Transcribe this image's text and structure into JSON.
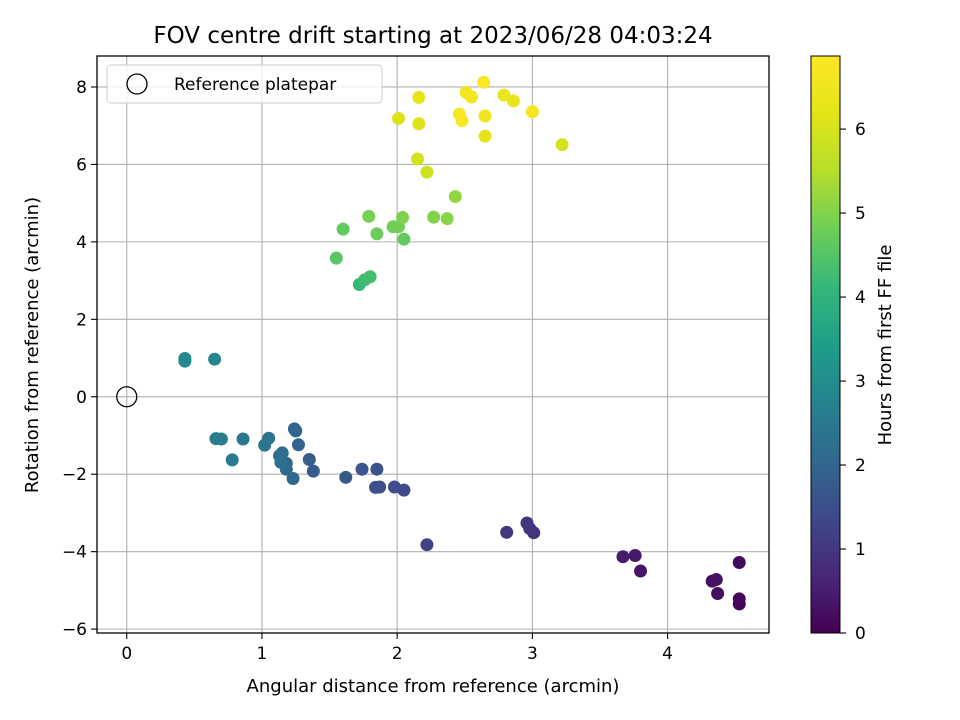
{
  "chart_data": {
    "type": "scatter",
    "title": "FOV centre drift starting at 2023/06/28 04:03:24",
    "xlabel": "Angular distance from reference (arcmin)",
    "ylabel": "Rotation from reference (arcmin)",
    "colorbar_label": "Hours from first FF file",
    "xlim": [
      -0.22,
      4.75
    ],
    "ylim": [
      -6.1,
      8.8
    ],
    "xticks": [
      0,
      1,
      2,
      3,
      4
    ],
    "yticks": [
      -6,
      -4,
      -2,
      0,
      2,
      4,
      6,
      8
    ],
    "xtick_labels": [
      "0",
      "1",
      "2",
      "3",
      "4"
    ],
    "ytick_labels": [
      "−6",
      "−4",
      "−2",
      "0",
      "2",
      "4",
      "6",
      "8"
    ],
    "colorbar_ticks": [
      0,
      1,
      2,
      3,
      4,
      5,
      6
    ],
    "colorbar_tick_labels": [
      "0",
      "1",
      "2",
      "3",
      "4",
      "5",
      "6"
    ],
    "colorbar_range": [
      0,
      6.87
    ],
    "colormap": "viridis",
    "grid": true,
    "legend": {
      "location": "top-left",
      "entries": [
        "Reference platepar"
      ]
    },
    "reference_point": {
      "x": 0,
      "y": 0
    },
    "points": [
      {
        "x": 4.53,
        "y": -5.35,
        "c": 0.05
      },
      {
        "x": 4.53,
        "y": -5.22,
        "c": 0.1
      },
      {
        "x": 4.53,
        "y": -4.28,
        "c": 0.15
      },
      {
        "x": 4.37,
        "y": -5.08,
        "c": 0.2
      },
      {
        "x": 4.33,
        "y": -4.76,
        "c": 0.25
      },
      {
        "x": 4.36,
        "y": -4.72,
        "c": 0.3
      },
      {
        "x": 3.8,
        "y": -4.5,
        "c": 0.35
      },
      {
        "x": 3.76,
        "y": -4.1,
        "c": 0.4
      },
      {
        "x": 3.67,
        "y": -4.13,
        "c": 0.45
      },
      {
        "x": 3.01,
        "y": -3.51,
        "c": 0.9
      },
      {
        "x": 2.98,
        "y": -3.4,
        "c": 0.95
      },
      {
        "x": 2.96,
        "y": -3.26,
        "c": 1.0
      },
      {
        "x": 2.81,
        "y": -3.5,
        "c": 1.05
      },
      {
        "x": 2.22,
        "y": -3.82,
        "c": 1.2
      },
      {
        "x": 2.05,
        "y": -2.41,
        "c": 1.4
      },
      {
        "x": 1.98,
        "y": -2.33,
        "c": 1.45
      },
      {
        "x": 1.87,
        "y": -2.33,
        "c": 1.5
      },
      {
        "x": 1.84,
        "y": -2.34,
        "c": 1.55
      },
      {
        "x": 1.85,
        "y": -1.87,
        "c": 1.6
      },
      {
        "x": 1.74,
        "y": -1.87,
        "c": 1.65
      },
      {
        "x": 1.62,
        "y": -2.08,
        "c": 1.7
      },
      {
        "x": 1.38,
        "y": -1.92,
        "c": 1.8
      },
      {
        "x": 1.35,
        "y": -1.62,
        "c": 1.85
      },
      {
        "x": 1.27,
        "y": -1.24,
        "c": 1.9
      },
      {
        "x": 1.24,
        "y": -0.83,
        "c": 1.95
      },
      {
        "x": 1.25,
        "y": -0.88,
        "c": 2.0
      },
      {
        "x": 1.23,
        "y": -2.11,
        "c": 2.05
      },
      {
        "x": 1.18,
        "y": -1.72,
        "c": 2.1
      },
      {
        "x": 1.18,
        "y": -1.87,
        "c": 2.15
      },
      {
        "x": 1.15,
        "y": -1.45,
        "c": 2.2
      },
      {
        "x": 1.13,
        "y": -1.52,
        "c": 2.25
      },
      {
        "x": 1.14,
        "y": -1.69,
        "c": 2.3
      },
      {
        "x": 1.05,
        "y": -1.07,
        "c": 2.35
      },
      {
        "x": 1.02,
        "y": -1.25,
        "c": 2.4
      },
      {
        "x": 0.86,
        "y": -1.09,
        "c": 2.45
      },
      {
        "x": 0.78,
        "y": -1.63,
        "c": 2.5
      },
      {
        "x": 0.7,
        "y": -1.09,
        "c": 2.55
      },
      {
        "x": 0.66,
        "y": -1.08,
        "c": 2.6
      },
      {
        "x": 0.65,
        "y": 0.97,
        "c": 2.85
      },
      {
        "x": 0.43,
        "y": 0.99,
        "c": 2.9
      },
      {
        "x": 0.43,
        "y": 0.92,
        "c": 2.95
      },
      {
        "x": 1.72,
        "y": 2.9,
        "c": 4.15
      },
      {
        "x": 1.76,
        "y": 3.02,
        "c": 4.25
      },
      {
        "x": 1.8,
        "y": 3.1,
        "c": 4.3
      },
      {
        "x": 1.55,
        "y": 3.58,
        "c": 4.55
      },
      {
        "x": 1.6,
        "y": 4.33,
        "c": 4.65
      },
      {
        "x": 2.05,
        "y": 4.07,
        "c": 4.7
      },
      {
        "x": 1.85,
        "y": 4.21,
        "c": 4.75
      },
      {
        "x": 1.97,
        "y": 4.39,
        "c": 4.8
      },
      {
        "x": 2.01,
        "y": 4.39,
        "c": 4.85
      },
      {
        "x": 1.79,
        "y": 4.66,
        "c": 4.9
      },
      {
        "x": 2.04,
        "y": 4.63,
        "c": 4.95
      },
      {
        "x": 2.27,
        "y": 4.64,
        "c": 5.0
      },
      {
        "x": 2.37,
        "y": 4.6,
        "c": 5.05
      },
      {
        "x": 2.43,
        "y": 5.17,
        "c": 5.15
      },
      {
        "x": 2.22,
        "y": 5.8,
        "c": 5.85
      },
      {
        "x": 2.15,
        "y": 6.14,
        "c": 5.95
      },
      {
        "x": 3.22,
        "y": 6.51,
        "c": 5.95
      },
      {
        "x": 2.01,
        "y": 7.19,
        "c": 6.1
      },
      {
        "x": 2.16,
        "y": 7.05,
        "c": 6.1
      },
      {
        "x": 2.16,
        "y": 7.73,
        "c": 6.25
      },
      {
        "x": 2.65,
        "y": 6.73,
        "c": 6.25
      },
      {
        "x": 2.86,
        "y": 7.64,
        "c": 6.3
      },
      {
        "x": 2.79,
        "y": 7.79,
        "c": 6.4
      },
      {
        "x": 2.65,
        "y": 7.25,
        "c": 6.5
      },
      {
        "x": 2.55,
        "y": 7.74,
        "c": 6.55
      },
      {
        "x": 2.51,
        "y": 7.86,
        "c": 6.6
      },
      {
        "x": 3.0,
        "y": 7.36,
        "c": 6.65
      },
      {
        "x": 2.46,
        "y": 7.3,
        "c": 6.75
      },
      {
        "x": 2.48,
        "y": 7.13,
        "c": 6.8
      },
      {
        "x": 2.64,
        "y": 8.12,
        "c": 6.85
      }
    ]
  }
}
